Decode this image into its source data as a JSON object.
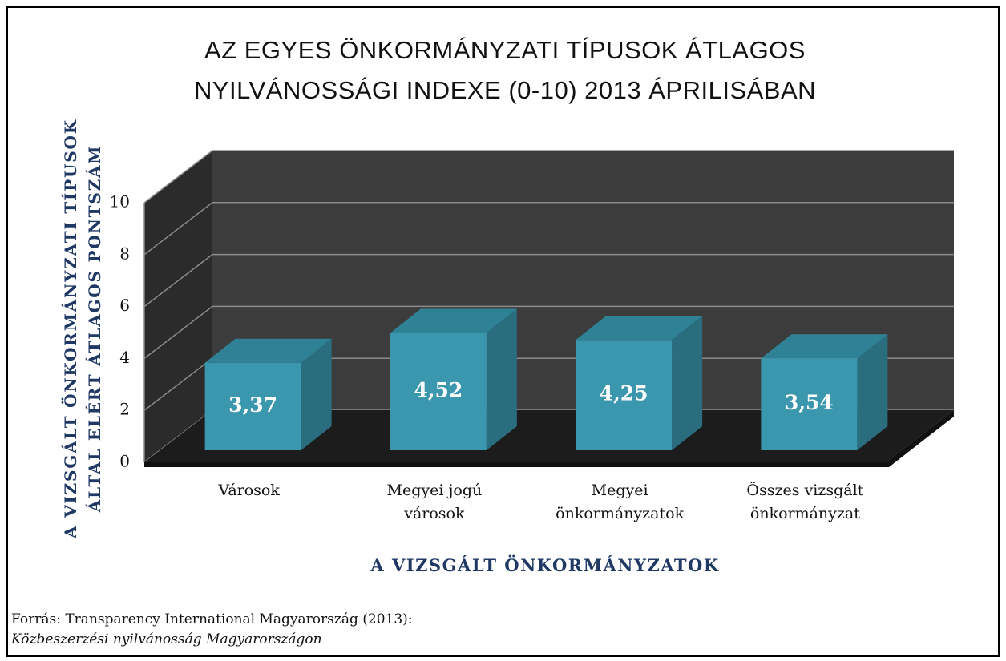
{
  "chart_data": {
    "type": "bar3d",
    "title": "AZ EGYES ÖNKORMÁNYZATI TÍPUSOK ÁTLAGOS NYILVÁNOSSÁGI INDEXE (0-10) 2013 ÁPRILISÁBAN",
    "y_label": "A VIZSGÁLT ÖNKORMÁNYZATI TÍPUSOK ÁLTAL ELÉRT ÁTLAGOS PONTSZÁM",
    "x_label": "A VIZSGÁLT ÖNKORMÁNYZATOK",
    "categories": [
      "Városok",
      "Megyei jogú városok",
      "Megyei önkormányzatok",
      "Összes vizsgált önkormányzat"
    ],
    "values": [
      3.37,
      4.52,
      4.25,
      3.54
    ],
    "value_labels": [
      "3,37",
      "4,52",
      "4,25",
      "3,54"
    ],
    "color": "#3a97ad",
    "ylim": [
      0,
      10
    ],
    "yticks": [
      0,
      2,
      4,
      6,
      8,
      10
    ],
    "grid": true,
    "source": {
      "line1": "Forrás: Transparency International Magyarország (2013):",
      "line2": "Közbeszerzési nyilvánosság Magyarországon"
    }
  }
}
